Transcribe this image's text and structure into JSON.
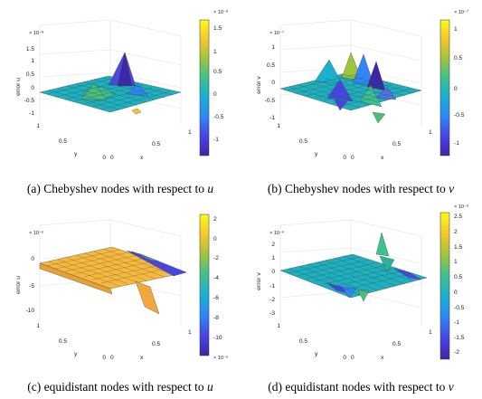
{
  "panels": [
    {
      "caption_prefix": "(a)",
      "caption_text": "Chebyshev nodes with respect to",
      "caption_var": "u",
      "zlabel": "error u",
      "zexp": "× 10⁻⁸",
      "zticks": [
        "1.5",
        "1",
        "0.5",
        "0",
        "-0.5",
        "-1"
      ],
      "cbexp": "× 10⁻⁸",
      "cbticks": [
        "1.5",
        "1",
        "0.5",
        "0",
        "-0.5",
        "-1"
      ],
      "xlabel": "x",
      "xticks": [
        "0",
        "0.5",
        "1"
      ],
      "ylabel": "y",
      "yticks": [
        "0",
        "0.5",
        "1"
      ],
      "colormap": [
        "#3e26a8",
        "#4744e8",
        "#2e87f7",
        "#17b0d2",
        "#3ec08f",
        "#9fc53d",
        "#f5c72b",
        "#f9fb15"
      ]
    },
    {
      "caption_prefix": "(b)",
      "caption_text": "Chebyshev nodes with respect to",
      "caption_var": "v",
      "zlabel": "error v",
      "zexp": "× 10⁻⁷",
      "zticks": [
        "1",
        "0.5",
        "0",
        "-0.5",
        "-1"
      ],
      "cbexp": "× 10⁻⁷",
      "cbticks": [
        "1",
        "0.5",
        "0",
        "-0.5",
        "-1"
      ],
      "xlabel": "x",
      "xticks": [
        "0",
        "0.5",
        "1"
      ],
      "ylabel": "y",
      "yticks": [
        "0",
        "0.5",
        "1"
      ],
      "colormap": [
        "#3e26a8",
        "#4744e8",
        "#2e87f7",
        "#17b0d2",
        "#3ec08f",
        "#9fc53d",
        "#f5c72b",
        "#f9fb15"
      ]
    },
    {
      "caption_prefix": "(c)",
      "caption_text": "equidistant nodes with respect to",
      "caption_var": "u",
      "zlabel": "error u",
      "zexp": "× 10⁻⁶",
      "zticks": [
        "0",
        "-5",
        "-10"
      ],
      "cbexp": "× 10⁻⁶",
      "cbticks": [
        "2",
        "0",
        "-2",
        "-4",
        "-6",
        "-8",
        "-10"
      ],
      "xlabel": "x",
      "xticks": [
        "0",
        "0.5",
        "1"
      ],
      "ylabel": "y",
      "yticks": [
        "0",
        "0.5",
        "1"
      ],
      "colormap": [
        "#3e26a8",
        "#4744e8",
        "#2e87f7",
        "#17b0d2",
        "#3ec08f",
        "#9fc53d",
        "#f5c72b",
        "#f9fb15"
      ]
    },
    {
      "caption_prefix": "(d)",
      "caption_text": "equidistant nodes with respect to",
      "caption_var": "v",
      "zlabel": "error v",
      "zexp": "× 10⁻⁶",
      "zticks": [
        "2",
        "1",
        "0",
        "-1",
        "-2",
        "-3"
      ],
      "cbexp": "× 10⁻⁶",
      "cbticks": [
        "2.5",
        "2",
        "1.5",
        "1",
        "0.5",
        "0",
        "-0.5",
        "-1",
        "-1.5",
        "-2"
      ],
      "xlabel": "x",
      "xticks": [
        "0",
        "0.5",
        "1"
      ],
      "ylabel": "y",
      "yticks": [
        "0",
        "0.5",
        "1"
      ],
      "colormap": [
        "#3e26a8",
        "#4744e8",
        "#2e87f7",
        "#17b0d2",
        "#3ec08f",
        "#9fc53d",
        "#f5c72b",
        "#f9fb15"
      ]
    }
  ]
}
